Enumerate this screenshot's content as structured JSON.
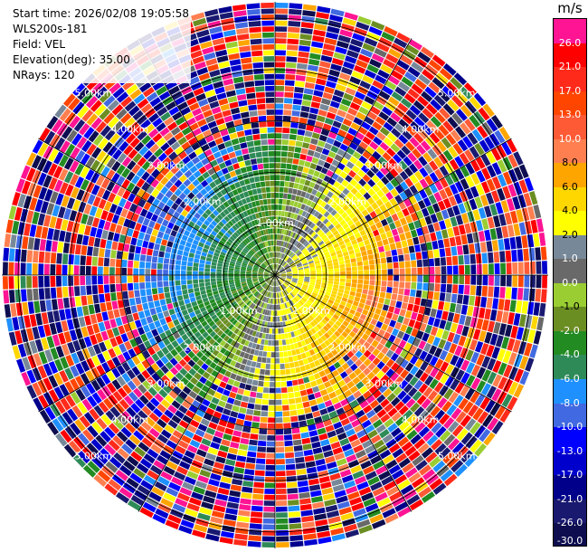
{
  "header": {
    "start_time": "Start time: 2026/02/08 19:05:58",
    "instrument": "WLS200s-181",
    "field": "Field: VEL",
    "elevation": "Elevation(deg): 35.00",
    "nrays": "NRays: 120"
  },
  "colorbar": {
    "unit": "m/s",
    "levels": [
      {
        "label": "26.0",
        "color": "#ff1493"
      },
      {
        "label": "21.0",
        "color": "#ff0000"
      },
      {
        "label": "17.0",
        "color": "#ff2a1a"
      },
      {
        "label": "13.0",
        "color": "#ff4500"
      },
      {
        "label": "10.0",
        "color": "#ff5a36"
      },
      {
        "label": "8.0",
        "color": "#ff7f50"
      },
      {
        "label": "6.0",
        "color": "#ffa500"
      },
      {
        "label": "4.0",
        "color": "#ffd700"
      },
      {
        "label": "2.0",
        "color": "#ffff00"
      },
      {
        "label": "1.0",
        "color": "#778899"
      },
      {
        "label": "0.0",
        "color": "#696969"
      },
      {
        "label": "-1.0",
        "color": "#9acd32"
      },
      {
        "label": "-2.0",
        "color": "#6b8e23"
      },
      {
        "label": "-4.0",
        "color": "#228b22"
      },
      {
        "label": "-6.0",
        "color": "#2e8b57"
      },
      {
        "label": "-8.0",
        "color": "#1e90ff"
      },
      {
        "label": "-10.0",
        "color": "#4169e1"
      },
      {
        "label": "-13.0",
        "color": "#0000ff"
      },
      {
        "label": "-17.0",
        "color": "#0000cd"
      },
      {
        "label": "-21.0",
        "color": "#00008b"
      },
      {
        "label": "-26.0",
        "color": "#191970"
      },
      {
        "label": "-30.0",
        "color": "#0d0d50"
      }
    ]
  },
  "chart_data": {
    "type": "heatmap",
    "projection": "polar-ppi",
    "field": "VEL",
    "units": "m/s",
    "nrays": 120,
    "max_range_km": 5.0,
    "range_rings_km": [
      1.0,
      2.0,
      3.0,
      4.0,
      5.0
    ],
    "ring_labels": [
      {
        "text": "1.00km",
        "ring_km": 1.0,
        "az_deg": 0
      },
      {
        "text": "1.00km",
        "ring_km": 1.0,
        "az_deg": 135
      },
      {
        "text": "1.00km",
        "ring_km": 1.0,
        "az_deg": 225
      },
      {
        "text": "2.00km",
        "ring_km": 2.0,
        "az_deg": 45
      },
      {
        "text": "2.00km",
        "ring_km": 2.0,
        "az_deg": 135
      },
      {
        "text": "2.00km",
        "ring_km": 2.0,
        "az_deg": 225
      },
      {
        "text": "2.00km",
        "ring_km": 2.0,
        "az_deg": 315
      },
      {
        "text": "3.00km",
        "ring_km": 3.0,
        "az_deg": 45
      },
      {
        "text": "3.00km",
        "ring_km": 3.0,
        "az_deg": 135
      },
      {
        "text": "3.00km",
        "ring_km": 3.0,
        "az_deg": 225
      },
      {
        "text": "3.00km",
        "ring_km": 3.0,
        "az_deg": 315
      },
      {
        "text": "4.00km",
        "ring_km": 4.0,
        "az_deg": 45
      },
      {
        "text": "4.00km",
        "ring_km": 4.0,
        "az_deg": 135
      },
      {
        "text": "4.00km",
        "ring_km": 4.0,
        "az_deg": 225
      },
      {
        "text": "4.00km",
        "ring_km": 4.0,
        "az_deg": 315
      },
      {
        "text": "5.00km",
        "ring_km": 5.0,
        "az_deg": 45
      },
      {
        "text": "5.00km",
        "ring_km": 5.0,
        "az_deg": 135
      },
      {
        "text": "5.00km",
        "ring_km": 5.0,
        "az_deg": 225
      },
      {
        "text": "5.00km",
        "ring_km": 5.0,
        "az_deg": 315
      }
    ],
    "spokes_deg": [
      0,
      30,
      60,
      90,
      120,
      150,
      180,
      210,
      240,
      270,
      300,
      330
    ],
    "velocity_pattern": {
      "description_free": true,
      "positive_lobe_az_deg": 110,
      "negative_lobe_az_deg": 290,
      "valid_range_km": 2.6,
      "peak_speed_ms": 9.0
    }
  }
}
